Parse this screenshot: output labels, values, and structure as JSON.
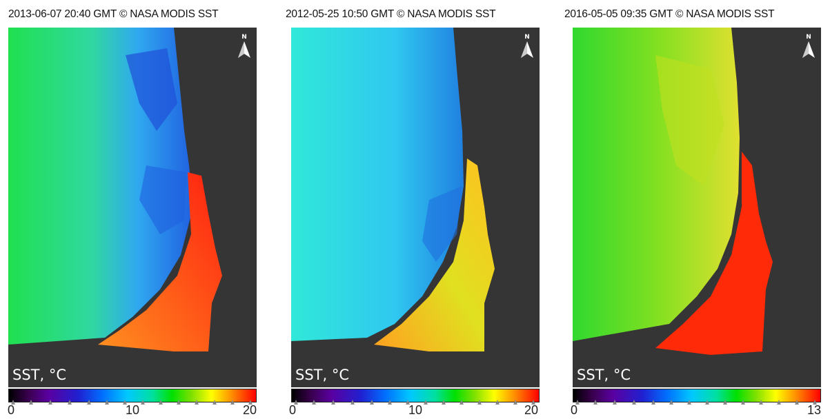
{
  "panels": [
    {
      "title": "2013-06-07 20:40 GMT © NASA MODIS SST",
      "variable_label": "SST, °C",
      "north_label": "N",
      "scale_min": "0",
      "scale_mid": "10",
      "scale_max": "20",
      "sea_colors": [
        "#20e050",
        "#30c8ff",
        "#2060e0"
      ],
      "bay_colors": [
        "#ff3010",
        "#ff8020"
      ]
    },
    {
      "title": "2012-05-25 10:50 GMT © NASA MODIS SST",
      "variable_label": "SST, °C",
      "north_label": "N",
      "scale_min": "0",
      "scale_mid": "10",
      "scale_max": "20",
      "sea_colors": [
        "#30e8e0",
        "#20c0f0",
        "#2080e0"
      ],
      "bay_colors": [
        "#e0e020",
        "#ffa020"
      ]
    },
    {
      "title": "2016-05-05 09:35 GMT © NASA MODIS SST",
      "variable_label": "SST, °C",
      "north_label": "N",
      "scale_min": "0",
      "scale_mid": "",
      "scale_max": "13",
      "sea_colors": [
        "#30e030",
        "#a0e020",
        "#e0e030"
      ],
      "bay_colors": [
        "#ff2000",
        "#ff4010"
      ]
    }
  ]
}
